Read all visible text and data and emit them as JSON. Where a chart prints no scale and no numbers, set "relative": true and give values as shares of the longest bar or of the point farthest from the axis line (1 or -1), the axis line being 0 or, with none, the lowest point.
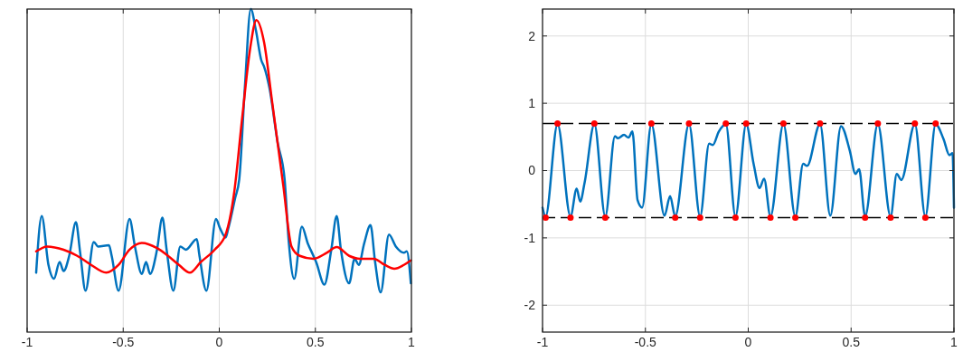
{
  "chart_data": [
    {
      "type": "line",
      "relative": true,
      "xlim": [
        -1,
        1
      ],
      "xticks": [
        -1,
        -0.5,
        0,
        0.5,
        1
      ],
      "tick_labels": "x",
      "grid": true,
      "series": [
        {
          "color": "#0072bd",
          "x": [
            -0.953,
            -0.924,
            -0.889,
            -0.86,
            -0.831,
            -0.81,
            -0.781,
            -0.746,
            -0.724,
            -0.696,
            -0.653,
            -0.631,
            -0.574,
            -0.56,
            -0.524,
            -0.467,
            -0.439,
            -0.403,
            -0.381,
            -0.36,
            -0.324,
            -0.296,
            -0.274,
            -0.239,
            -0.203,
            -0.174,
            -0.117,
            -0.103,
            -0.067,
            -0.017,
            0.004,
            0.033,
            0.047,
            0.083,
            0.104,
            0.133,
            0.164,
            0.19,
            0.219,
            0.233,
            0.261,
            0.304,
            0.34,
            0.361,
            0.39,
            0.43,
            0.461,
            0.49,
            0.504,
            0.547,
            0.583,
            0.611,
            0.633,
            0.676,
            0.704,
            0.726,
            0.754,
            0.787,
            0.811,
            0.84,
            0.883,
            0.919,
            0.961,
            0.976,
            0.997
          ],
          "values": [
            0.184,
            0.359,
            0.208,
            0.165,
            0.217,
            0.189,
            0.236,
            0.34,
            0.246,
            0.128,
            0.279,
            0.265,
            0.269,
            0.236,
            0.128,
            0.35,
            0.265,
            0.18,
            0.217,
            0.18,
            0.255,
            0.354,
            0.255,
            0.128,
            0.265,
            0.255,
            0.288,
            0.236,
            0.128,
            0.35,
            0.321,
            0.293,
            0.321,
            0.416,
            0.473,
            0.756,
            1,
            0.936,
            0.841,
            0.822,
            0.756,
            0.586,
            0.473,
            0.284,
            0.165,
            0.326,
            0.274,
            0.236,
            0.217,
            0.147,
            0.255,
            0.359,
            0.255,
            0.151,
            0.227,
            0.208,
            0.274,
            0.331,
            0.217,
            0.123,
            0.302,
            0.265,
            0.246,
            0.25,
            0.151
          ]
        },
        {
          "color": "#ff0000",
          "x": [
            -0.953,
            -0.896,
            -0.81,
            -0.739,
            -0.667,
            -0.589,
            -0.524,
            -0.467,
            -0.403,
            -0.324,
            -0.267,
            -0.21,
            -0.153,
            -0.096,
            -0.024,
            0.033,
            0.076,
            0.119,
            0.161,
            0.193,
            0.233,
            0.276,
            0.333,
            0.376,
            0.419,
            0.49,
            0.561,
            0.611,
            0.676,
            0.733,
            0.804,
            0.861,
            0.911,
            0.961,
            0.997
          ],
          "values": [
            0.25,
            0.265,
            0.255,
            0.236,
            0.208,
            0.184,
            0.208,
            0.255,
            0.276,
            0.26,
            0.236,
            0.208,
            0.184,
            0.217,
            0.255,
            0.302,
            0.425,
            0.662,
            0.879,
            0.966,
            0.898,
            0.709,
            0.454,
            0.265,
            0.236,
            0.227,
            0.246,
            0.263,
            0.236,
            0.227,
            0.227,
            0.208,
            0.196,
            0.208,
            0.222
          ]
        }
      ]
    },
    {
      "type": "line",
      "xlim": [
        -1,
        1
      ],
      "xticks": [
        -1,
        -0.5,
        0,
        0.5,
        1
      ],
      "ylim": [
        -2.4,
        2.4
      ],
      "yticks": [
        -2,
        -1,
        0,
        1,
        2
      ],
      "grid": true,
      "ref_lines": [
        {
          "axis": "y",
          "value": 0.7,
          "color": "#000000",
          "line_style": "dashed"
        },
        {
          "axis": "y",
          "value": -0.7,
          "color": "#000000",
          "line_style": "dashed"
        }
      ],
      "series": [
        {
          "color": "#0072bd",
          "x": [
            -1,
            -0.985,
            -0.927,
            -0.864,
            -0.834,
            -0.817,
            -0.795,
            -0.748,
            -0.695,
            -0.648,
            -0.634,
            -0.604,
            -0.582,
            -0.563,
            -0.538,
            -0.516,
            -0.471,
            -0.407,
            -0.38,
            -0.355,
            -0.288,
            -0.234,
            -0.19,
            -0.172,
            -0.143,
            -0.109,
            -0.062,
            -0.01,
            0.026,
            0.055,
            0.077,
            0.108,
            0.171,
            0.229,
            0.267,
            0.286,
            0.349,
            0.399,
            0.451,
            0.494,
            0.521,
            0.539,
            0.568,
            0.63,
            0.692,
            0.722,
            0.744,
            0.81,
            0.861,
            0.911,
            0.949,
            0.978,
            0.993,
            1
          ],
          "values": [
            -0.55,
            -0.68,
            0.69,
            -0.68,
            -0.27,
            -0.46,
            -0.17,
            0.69,
            -0.68,
            0.51,
            0.48,
            0.53,
            0.49,
            0.58,
            -0.44,
            -0.55,
            0.69,
            -0.67,
            -0.38,
            -0.68,
            0.69,
            -0.68,
            0.4,
            0.38,
            0.58,
            0.69,
            -0.68,
            0.69,
            0.1,
            -0.26,
            -0.12,
            -0.68,
            0.69,
            -0.68,
            0.1,
            0.07,
            0.69,
            -0.67,
            0.66,
            0.29,
            -0.05,
            0.02,
            -0.68,
            0.69,
            -0.68,
            -0.05,
            -0.14,
            0.69,
            -0.68,
            0.69,
            0.47,
            0.23,
            0.26,
            -0.55
          ]
        },
        {
          "type": "scatter",
          "color": "#ff0000",
          "marker": "circle",
          "x": [
            -0.985,
            -0.927,
            -0.864,
            -0.748,
            -0.695,
            -0.471,
            -0.355,
            -0.288,
            -0.234,
            -0.109,
            -0.062,
            -0.01,
            0.108,
            0.171,
            0.229,
            0.349,
            0.568,
            0.63,
            0.692,
            0.81,
            0.861,
            0.911
          ],
          "values": [
            -0.7,
            0.7,
            -0.7,
            0.7,
            -0.7,
            0.7,
            -0.7,
            0.7,
            -0.7,
            0.7,
            -0.7,
            0.7,
            -0.7,
            0.7,
            -0.7,
            0.7,
            -0.7,
            0.7,
            -0.7,
            0.7,
            -0.7,
            0.7
          ]
        }
      ]
    }
  ]
}
